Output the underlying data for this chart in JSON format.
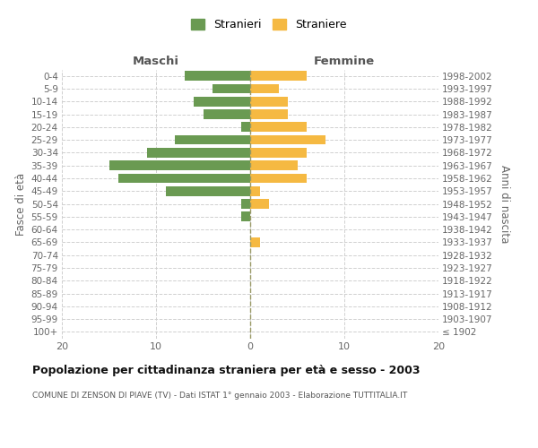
{
  "age_groups": [
    "100+",
    "95-99",
    "90-94",
    "85-89",
    "80-84",
    "75-79",
    "70-74",
    "65-69",
    "60-64",
    "55-59",
    "50-54",
    "45-49",
    "40-44",
    "35-39",
    "30-34",
    "25-29",
    "20-24",
    "15-19",
    "10-14",
    "5-9",
    "0-4"
  ],
  "birth_years": [
    "≤ 1902",
    "1903-1907",
    "1908-1912",
    "1913-1917",
    "1918-1922",
    "1923-1927",
    "1928-1932",
    "1933-1937",
    "1938-1942",
    "1943-1947",
    "1948-1952",
    "1953-1957",
    "1958-1962",
    "1963-1967",
    "1968-1972",
    "1973-1977",
    "1978-1982",
    "1983-1987",
    "1988-1992",
    "1993-1997",
    "1998-2002"
  ],
  "maschi": [
    0,
    0,
    0,
    0,
    0,
    0,
    0,
    0,
    0,
    1,
    1,
    9,
    14,
    15,
    11,
    8,
    1,
    5,
    6,
    4,
    7
  ],
  "femmine": [
    0,
    0,
    0,
    0,
    0,
    0,
    0,
    1,
    0,
    0,
    2,
    1,
    6,
    5,
    6,
    8,
    6,
    4,
    4,
    3,
    6
  ],
  "color_maschi": "#6a9a52",
  "color_femmine": "#f5b942",
  "title": "Popolazione per cittadinanza straniera per età e sesso - 2003",
  "subtitle": "COMUNE DI ZENSON DI PIAVE (TV) - Dati ISTAT 1° gennaio 2003 - Elaborazione TUTTITALIA.IT",
  "header_left": "Maschi",
  "header_right": "Femmine",
  "ylabel_left": "Fasce di età",
  "ylabel_right": "Anni di nascita",
  "legend_maschi": "Stranieri",
  "legend_femmine": "Straniere",
  "xlim": 20,
  "background_color": "#ffffff",
  "grid_color": "#d0d0d0",
  "bar_height": 0.75
}
